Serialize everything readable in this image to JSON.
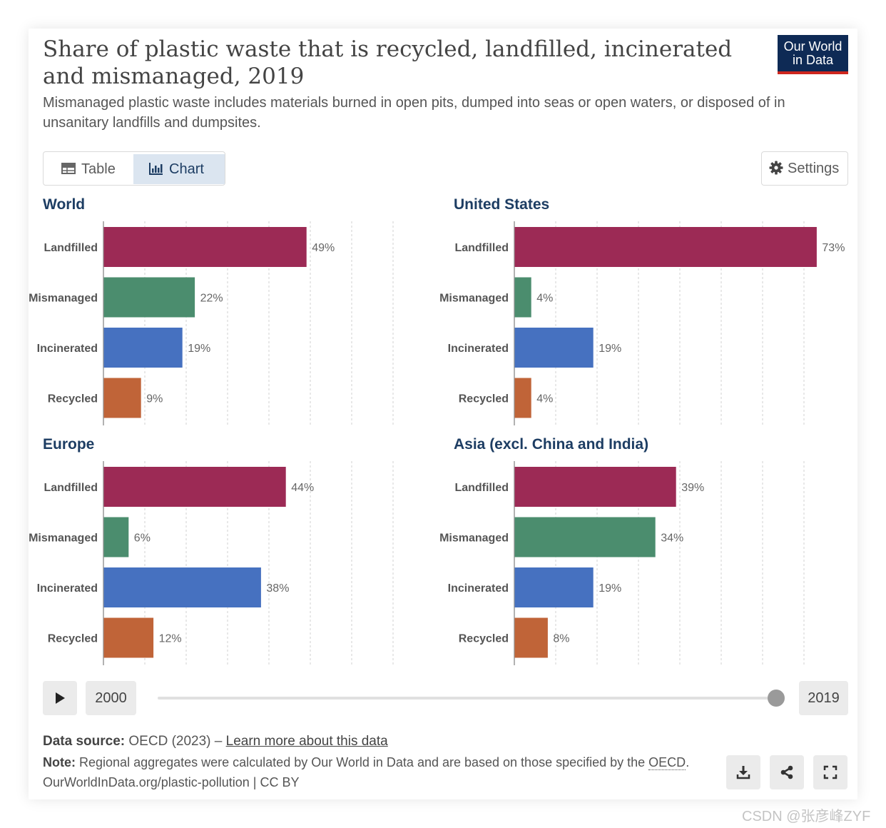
{
  "header": {
    "title": "Share of plastic waste that is recycled, landfilled, incinerated and mismanaged, 2019",
    "subtitle": "Mismanaged plastic waste includes materials burned in open pits, dumped into seas or open waters, or disposed of in unsanitary landfills and dumpsites.",
    "logo_line1": "Our World",
    "logo_line2": "in Data"
  },
  "tabs": [
    {
      "label": "Table",
      "icon": "table-icon",
      "active": false
    },
    {
      "label": "Chart",
      "icon": "chart-icon",
      "active": true
    }
  ],
  "settings_label": "Settings",
  "colors": {
    "Landfilled": "#9c2a55",
    "Mismanaged": "#4b8d6e",
    "Incinerated": "#4671c0",
    "Recycled": "#c06438"
  },
  "chart_data": [
    {
      "type": "bar",
      "orientation": "horizontal",
      "title": "World",
      "categories": [
        "Landfilled",
        "Mismanaged",
        "Incinerated",
        "Recycled"
      ],
      "values": [
        49,
        22,
        19,
        9
      ],
      "unit": "%"
    },
    {
      "type": "bar",
      "orientation": "horizontal",
      "title": "United States",
      "categories": [
        "Landfilled",
        "Mismanaged",
        "Incinerated",
        "Recycled"
      ],
      "values": [
        73,
        4,
        19,
        4
      ],
      "unit": "%"
    },
    {
      "type": "bar",
      "orientation": "horizontal",
      "title": "Europe",
      "categories": [
        "Landfilled",
        "Mismanaged",
        "Incinerated",
        "Recycled"
      ],
      "values": [
        44,
        6,
        38,
        12
      ],
      "unit": "%"
    },
    {
      "type": "bar",
      "orientation": "horizontal",
      "title": "Asia (excl. China and India)",
      "categories": [
        "Landfilled",
        "Mismanaged",
        "Incinerated",
        "Recycled"
      ],
      "values": [
        39,
        34,
        19,
        8
      ],
      "unit": "%"
    }
  ],
  "timeline": {
    "start_year": "2000",
    "end_year": "2019",
    "selected_year": 2019
  },
  "footer": {
    "source_label": "Data source:",
    "source_text": "OECD (2023) – ",
    "source_link": "Learn more about this data",
    "note_label": "Note:",
    "note_text": "Regional aggregates were calculated by Our World in Data and are based on those specified by the ",
    "note_link": "OECD",
    "note_end": ".",
    "url": "OurWorldInData.org/plastic-pollution | CC BY"
  },
  "actions": [
    {
      "name": "download",
      "icon": "download-icon"
    },
    {
      "name": "share",
      "icon": "share-icon"
    },
    {
      "name": "fullscreen",
      "icon": "fullscreen-icon"
    }
  ],
  "watermark": "CSDN @张彦峰ZYF"
}
